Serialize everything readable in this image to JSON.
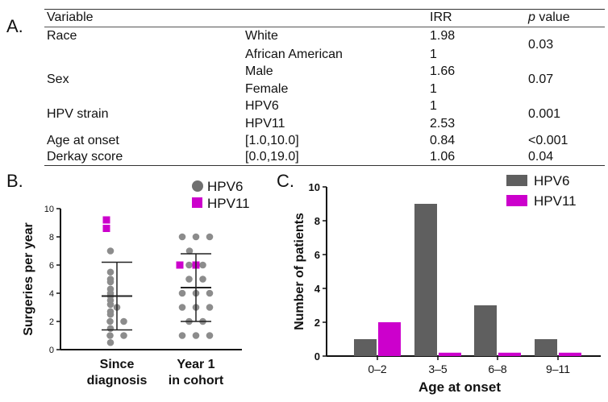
{
  "panel_labels": {
    "a": "A.",
    "b": "B.",
    "c": "C."
  },
  "table": {
    "headers": {
      "variable": "Variable",
      "irr": "IRR",
      "p_italic": "p",
      "p_rest": " value"
    },
    "rows": [
      {
        "variable": "Race",
        "levels": [
          "White",
          "African American"
        ],
        "irr": [
          "1.98",
          "1"
        ],
        "p": "0.03"
      },
      {
        "variable": "Sex",
        "levels": [
          "Male",
          "Female"
        ],
        "irr": [
          "1.66",
          "1"
        ],
        "p": "0.07"
      },
      {
        "variable": "HPV strain",
        "levels": [
          "HPV6",
          "HPV11"
        ],
        "irr": [
          "1",
          "2.53"
        ],
        "p": "0.001"
      },
      {
        "variable": "Age at onset",
        "levels": [
          "[1.0,10.0]"
        ],
        "irr": [
          "0.84"
        ],
        "p": "<0.001"
      },
      {
        "variable": "Derkay score",
        "levels": [
          "[0.0,19.0]"
        ],
        "irr": [
          "1.06"
        ],
        "p": "0.04"
      }
    ]
  },
  "colors": {
    "hpv6_dot": "#8c8c8c",
    "hpv6_legend": "#707070",
    "hpv11": "#cc00cc",
    "bar_hpv6": "#5f5f5f",
    "bar_hpv11": "#cc00cc",
    "axis": "#111111"
  },
  "chart_data": [
    {
      "type": "scatter",
      "title": "",
      "ylabel": "Surgeries per year",
      "xlabel": "",
      "ylim": [
        0,
        10
      ],
      "yticks": [
        "0",
        "2",
        "4",
        "6",
        "8",
        "10"
      ],
      "groups": [
        {
          "label_line1": "Since",
          "label_line2": "diagnosis",
          "mean": 3.8,
          "sd_low": 1.4,
          "sd_high": 6.2,
          "hpv6": [
            0.5,
            1.0,
            1.0,
            1.5,
            2.0,
            2.0,
            2.5,
            2.7,
            3.0,
            3.2,
            3.5,
            3.8,
            4.0,
            4.3,
            4.8,
            5.0,
            5.5,
            7.0
          ],
          "hpv11": [
            8.6,
            9.2
          ]
        },
        {
          "label_line1": "Year 1",
          "label_line2": "in cohort",
          "mean": 4.4,
          "sd_low": 2.0,
          "sd_high": 6.8,
          "hpv6": [
            1.0,
            1.0,
            1.0,
            2.0,
            2.0,
            3.0,
            3.0,
            3.0,
            4.0,
            4.0,
            4.0,
            5.0,
            5.0,
            6.0,
            6.0,
            7.0,
            8.0,
            8.0,
            8.0
          ],
          "hpv11": [
            6.0,
            6.0
          ]
        }
      ],
      "legend": [
        "HPV6",
        "HPV11"
      ]
    },
    {
      "type": "bar",
      "title": "",
      "xlabel": "Age at onset",
      "ylabel": "Number of patients",
      "ylim": [
        0,
        10
      ],
      "yticks": [
        "0",
        "2",
        "4",
        "6",
        "8",
        "10"
      ],
      "categories": [
        "0–2",
        "3–5",
        "6–8",
        "9–11"
      ],
      "series": [
        {
          "name": "HPV6",
          "values": [
            1,
            9,
            3,
            1
          ]
        },
        {
          "name": "HPV11",
          "values": [
            2,
            0.2,
            0.2,
            0.2
          ]
        }
      ],
      "legend": [
        "HPV6",
        "HPV11"
      ]
    }
  ]
}
